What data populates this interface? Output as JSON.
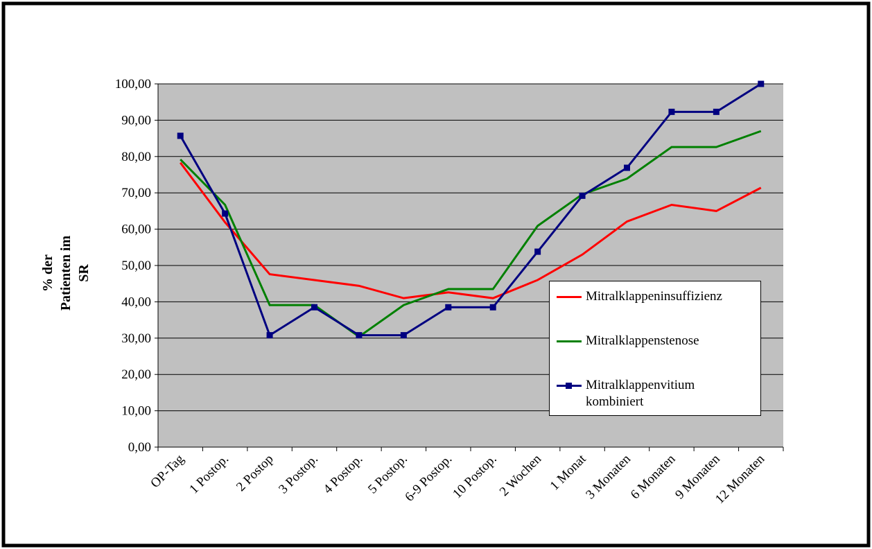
{
  "chart_data": {
    "type": "line",
    "y_label": "% der Patienten im SR",
    "categories": [
      "OP-Tag",
      "1 Postop.",
      "2 Postop",
      "3 Postop.",
      "4 Postop.",
      "5 Postop.",
      "6-9 Postop.",
      "10 Postop.",
      "2 Wochen",
      "1 Monat",
      "3 Monaten",
      "6 Monaten",
      "9 Monaten",
      "12 Monaten"
    ],
    "series": [
      {
        "name": "Mitralklappeninsuffizienz",
        "color": "#ff0000",
        "marker": false,
        "values": [
          78.3,
          61.9,
          47.6,
          46.0,
          44.4,
          41.0,
          42.6,
          41.0,
          46.0,
          53.0,
          62.1,
          66.7,
          65.0,
          71.4
        ]
      },
      {
        "name": "Mitralklappenstenose",
        "color": "#008000",
        "marker": false,
        "values": [
          79.2,
          66.7,
          39.1,
          39.1,
          30.4,
          39.1,
          43.5,
          43.5,
          60.9,
          69.6,
          73.9,
          82.6,
          82.6,
          87.0
        ]
      },
      {
        "name": "Mitralklappenvitium kombiniert",
        "color": "#000080",
        "marker": true,
        "values": [
          85.7,
          64.3,
          30.8,
          38.5,
          30.8,
          30.8,
          38.5,
          38.5,
          53.8,
          69.2,
          76.9,
          92.3,
          92.3,
          100.0
        ]
      }
    ],
    "ylim": [
      0,
      100
    ],
    "yticks": [
      {
        "value": 0,
        "label": "0,00"
      },
      {
        "value": 10,
        "label": "10,00"
      },
      {
        "value": 20,
        "label": "20,00"
      },
      {
        "value": 30,
        "label": "30,00"
      },
      {
        "value": 40,
        "label": "40,00"
      },
      {
        "value": 50,
        "label": "50,00"
      },
      {
        "value": 60,
        "label": "60,00"
      },
      {
        "value": 70,
        "label": "70,00"
      },
      {
        "value": 80,
        "label": "80,00"
      },
      {
        "value": 90,
        "label": "90,00"
      },
      {
        "value": 100,
        "label": "100,00"
      }
    ],
    "grid": true
  }
}
